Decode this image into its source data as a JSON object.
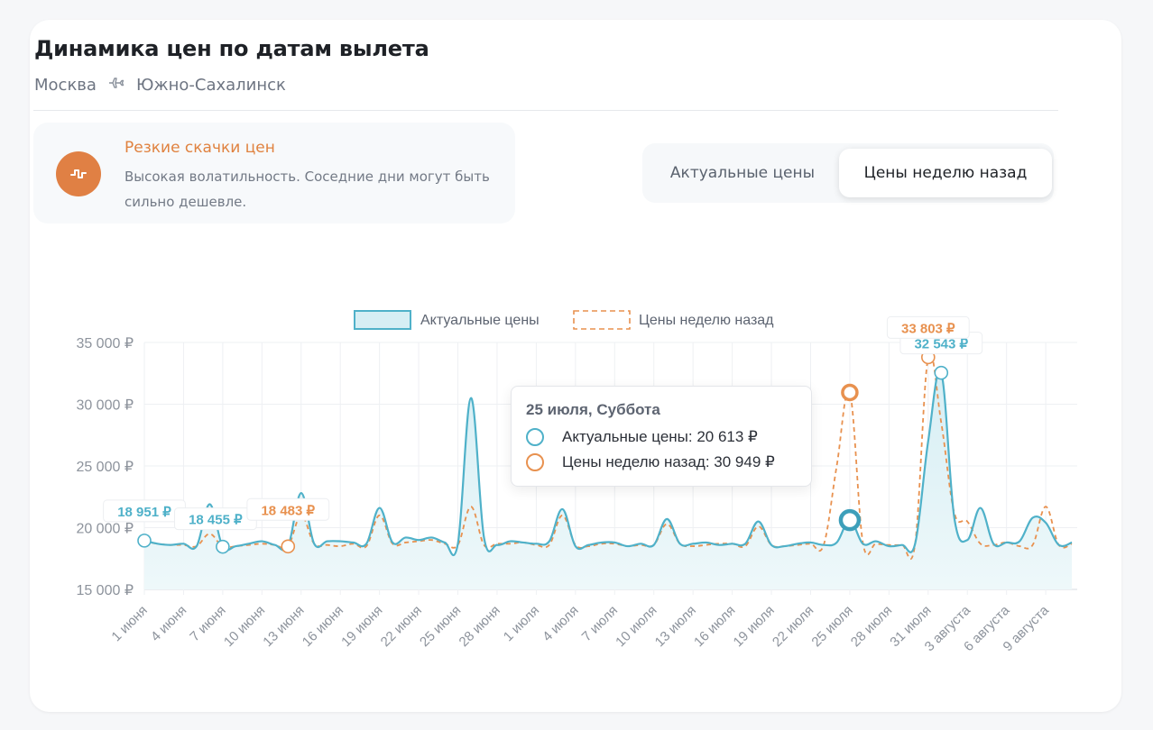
{
  "header": {
    "title": "Динамика цен по датам вылета",
    "origin": "Москва",
    "destination": "Южно-Сахалинск"
  },
  "alert": {
    "title": "Резкие скачки цен",
    "text": "Высокая волатильность. Соседние дни могут быть сильно дешевле.",
    "icon": "volatility-icon"
  },
  "toggle": {
    "option_current": "Актуальные цены",
    "option_week_ago": "Цены неделю назад",
    "selected": "Цены неделю назад"
  },
  "tooltip": {
    "title": "25 июля, Суббота",
    "current_label": "Актуальные цены: 20 613 ₽",
    "week_label": "Цены неделю назад: 30 949 ₽"
  },
  "colors": {
    "current": "#4fb1c9",
    "week_ago": "#e8914f",
    "accent": "#e08044"
  },
  "chart_data": {
    "type": "area",
    "x_unit": "day offset from 1 июня",
    "ylim": [
      15000,
      35000
    ],
    "yticks": [
      15000,
      20000,
      25000,
      30000,
      35000
    ],
    "ytick_labels": [
      "15 000 ₽",
      "20 000 ₽",
      "25 000 ₽",
      "30 000 ₽",
      "35 000 ₽"
    ],
    "xtick_labels": [
      "1 июня",
      "4 июня",
      "7 июня",
      "10 июня",
      "13 июня",
      "16 июня",
      "19 июня",
      "22 июня",
      "25 июня",
      "28 июня",
      "1 июля",
      "4 июля",
      "7 июля",
      "10 июля",
      "13 июля",
      "16 июля",
      "19 июля",
      "22 июля",
      "25 июля",
      "28 июля",
      "31 июля",
      "3 августа",
      "6 августа",
      "9 августа"
    ],
    "grid": true,
    "legend_position": "top",
    "series": [
      {
        "name": "Актуальные цены",
        "style": "area-solid",
        "x": [
          0,
          1,
          2,
          3,
          4,
          5,
          6,
          7,
          8,
          9,
          10,
          11,
          12,
          13,
          14,
          15,
          16,
          17,
          18,
          19,
          20,
          21,
          22,
          23,
          24,
          25,
          26,
          27,
          28,
          29,
          30,
          31,
          32,
          33,
          34,
          35,
          36,
          37,
          38,
          39,
          40,
          41,
          42,
          43,
          44,
          45,
          46,
          47,
          48,
          49,
          50,
          51,
          52,
          53,
          54,
          55,
          56,
          57,
          58,
          59,
          60,
          61,
          62,
          63,
          64,
          65,
          66,
          67,
          68,
          69,
          70,
          71
        ],
        "values": [
          18951,
          18700,
          18600,
          18700,
          18500,
          21900,
          18455,
          18500,
          18700,
          18900,
          18600,
          18483,
          22800,
          18700,
          18900,
          18900,
          18800,
          18700,
          21600,
          18800,
          19200,
          19000,
          19200,
          18800,
          18700,
          30500,
          19200,
          18600,
          18900,
          18800,
          18700,
          18900,
          21500,
          18500,
          18600,
          18800,
          18800,
          18500,
          18700,
          18600,
          20700,
          18700,
          18700,
          18800,
          18600,
          18700,
          18700,
          20500,
          18600,
          18500,
          18700,
          18800,
          18600,
          18800,
          20613,
          18700,
          18900,
          18500,
          18600,
          18700,
          27000,
          32543,
          20800,
          19000,
          21600,
          18700,
          18800,
          18900,
          20800,
          20400,
          18600,
          18800
        ],
        "point_labels": [
          {
            "x": 0,
            "text": "18 951 ₽"
          },
          {
            "x": 6,
            "text": "18 455 ₽"
          },
          {
            "x": 61,
            "text": "32 543 ₽"
          }
        ]
      },
      {
        "name": "Цены неделю назад",
        "style": "dashed",
        "x": [
          0,
          1,
          2,
          3,
          4,
          5,
          6,
          7,
          8,
          9,
          10,
          11,
          12,
          13,
          14,
          15,
          16,
          17,
          18,
          19,
          20,
          21,
          22,
          23,
          24,
          25,
          26,
          27,
          28,
          29,
          30,
          31,
          32,
          33,
          34,
          35,
          36,
          37,
          38,
          39,
          40,
          41,
          42,
          43,
          44,
          45,
          46,
          47,
          48,
          49,
          50,
          51,
          52,
          53,
          54,
          55,
          56,
          57,
          58,
          59,
          60,
          61,
          62,
          63,
          64,
          65,
          66,
          67,
          68,
          69,
          70,
          71
        ],
        "values": [
          18900,
          18700,
          18600,
          18600,
          18500,
          19500,
          18455,
          18500,
          18600,
          18700,
          18600,
          18483,
          21000,
          18700,
          18600,
          18500,
          18700,
          18500,
          21000,
          18700,
          18800,
          18900,
          19000,
          18700,
          18600,
          21700,
          18600,
          18700,
          18700,
          18800,
          18600,
          18600,
          21000,
          18600,
          18500,
          18700,
          18700,
          18500,
          18600,
          18600,
          20300,
          18700,
          18500,
          18600,
          18700,
          18700,
          18500,
          20100,
          18600,
          18500,
          18600,
          18700,
          18600,
          25000,
          30949,
          18800,
          18700,
          18600,
          18600,
          18700,
          33803,
          28500,
          21200,
          20500,
          18700,
          18600,
          18800,
          18500,
          18600,
          21700,
          18600,
          18700
        ],
        "point_labels": [
          {
            "x": 11,
            "text": "18 483 ₽"
          },
          {
            "x": 60,
            "text": "33 803 ₽"
          }
        ]
      }
    ]
  }
}
